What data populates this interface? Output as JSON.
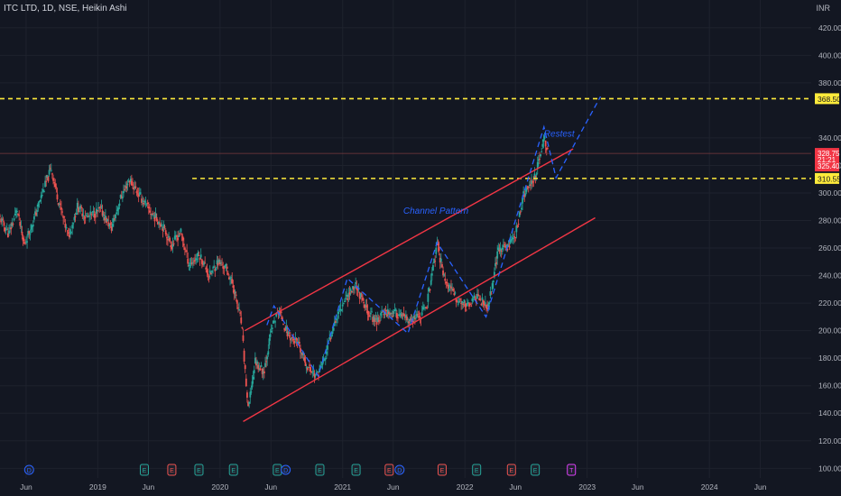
{
  "header": {
    "title": "ITC LTD, 1D, NSE, Heikin Ashi",
    "currency": "INR"
  },
  "colors": {
    "background": "#131722",
    "grid": "#1e222d",
    "up": "#26a69a",
    "down": "#ef5350",
    "channel": "#f23645",
    "projection": "#2962ff",
    "level": "#ffeb3b",
    "axis_text": "#b2b5be"
  },
  "chart_data": {
    "type": "candlestick",
    "title": "ITC LTD, 1D, NSE, Heikin Ashi",
    "y_axis": {
      "ylim": [
        93,
        431
      ],
      "ticks": [
        "420.00",
        "400.00",
        "380.00",
        "340.00",
        "320.00",
        "300.00",
        "280.00",
        "260.00",
        "240.00",
        "220.00",
        "200.00",
        "180.00",
        "160.00",
        "140.00",
        "120.00",
        "100.00"
      ]
    },
    "x_axis": {
      "xlim": [
        "2018-03-15",
        "2024-10-31"
      ],
      "ticks": [
        {
          "date": "2018-06-01",
          "label": "Jun"
        },
        {
          "date": "2019-01-01",
          "label": "2019"
        },
        {
          "date": "2019-06-01",
          "label": "Jun"
        },
        {
          "date": "2020-01-01",
          "label": "2020"
        },
        {
          "date": "2020-06-01",
          "label": "Jun"
        },
        {
          "date": "2021-01-01",
          "label": "2021"
        },
        {
          "date": "2021-06-01",
          "label": "Jun"
        },
        {
          "date": "2022-01-01",
          "label": "2022"
        },
        {
          "date": "2022-06-01",
          "label": "Jun"
        },
        {
          "date": "2023-01-01",
          "label": "2023"
        },
        {
          "date": "2023-06-01",
          "label": "Jun"
        },
        {
          "date": "2024-01-01",
          "label": "2024"
        },
        {
          "date": "2024-06-01",
          "label": "Jun"
        }
      ]
    },
    "price_path": [
      [
        "2018-03-15",
        282
      ],
      [
        "2018-04-10",
        270
      ],
      [
        "2018-05-05",
        288
      ],
      [
        "2018-05-25",
        262
      ],
      [
        "2018-06-20",
        278
      ],
      [
        "2018-07-20",
        300
      ],
      [
        "2018-08-15",
        318
      ],
      [
        "2018-09-05",
        295
      ],
      [
        "2018-10-05",
        268
      ],
      [
        "2018-11-01",
        290
      ],
      [
        "2018-12-01",
        282
      ],
      [
        "2019-01-10",
        288
      ],
      [
        "2019-02-10",
        274
      ],
      [
        "2019-03-10",
        296
      ],
      [
        "2019-04-05",
        310
      ],
      [
        "2019-05-01",
        300
      ],
      [
        "2019-06-10",
        285
      ],
      [
        "2019-07-10",
        278
      ],
      [
        "2019-08-10",
        262
      ],
      [
        "2019-09-05",
        272
      ],
      [
        "2019-10-01",
        248
      ],
      [
        "2019-11-01",
        255
      ],
      [
        "2019-12-01",
        240
      ],
      [
        "2019-12-25",
        250
      ],
      [
        "2020-01-20",
        245
      ],
      [
        "2020-02-10",
        232
      ],
      [
        "2020-03-05",
        205
      ],
      [
        "2020-03-25",
        142
      ],
      [
        "2020-04-15",
        178
      ],
      [
        "2020-05-10",
        170
      ],
      [
        "2020-06-05",
        203
      ],
      [
        "2020-06-25",
        215
      ],
      [
        "2020-07-20",
        198
      ],
      [
        "2020-08-20",
        190
      ],
      [
        "2020-09-15",
        175
      ],
      [
        "2020-10-15",
        167
      ],
      [
        "2020-11-10",
        180
      ],
      [
        "2020-12-05",
        205
      ],
      [
        "2021-01-05",
        222
      ],
      [
        "2021-02-10",
        234
      ],
      [
        "2021-03-05",
        218
      ],
      [
        "2021-04-10",
        207
      ],
      [
        "2021-05-10",
        214
      ],
      [
        "2021-06-15",
        212
      ],
      [
        "2021-07-20",
        206
      ],
      [
        "2021-08-20",
        210
      ],
      [
        "2021-09-10",
        220
      ],
      [
        "2021-10-10",
        262
      ],
      [
        "2021-11-05",
        235
      ],
      [
        "2021-12-10",
        222
      ],
      [
        "2022-01-10",
        218
      ],
      [
        "2022-02-10",
        225
      ],
      [
        "2022-03-10",
        215
      ],
      [
        "2022-04-10",
        258
      ],
      [
        "2022-05-10",
        262
      ],
      [
        "2022-06-01",
        270
      ],
      [
        "2022-06-25",
        298
      ],
      [
        "2022-07-15",
        305
      ],
      [
        "2022-08-05",
        318
      ],
      [
        "2022-08-25",
        340
      ],
      [
        "2022-09-05",
        332
      ]
    ],
    "series": [
      {
        "name": "Channel Pattern",
        "type": "trendline",
        "points": [
          [
            "2020-03-15",
            200
          ],
          [
            "2022-11-20",
            332
          ]
        ]
      },
      {
        "type": "trendline",
        "points": [
          [
            "2020-03-10",
            134
          ],
          [
            "2023-01-25",
            282
          ]
        ]
      },
      {
        "type": "projection",
        "points": [
          [
            "2020-05-20",
            204
          ],
          [
            "2020-06-10",
            218
          ],
          [
            "2020-10-20",
            167
          ],
          [
            "2021-01-15",
            238
          ],
          [
            "2021-07-15",
            198
          ],
          [
            "2021-10-10",
            264
          ],
          [
            "2022-03-05",
            210
          ],
          [
            "2022-08-25",
            348
          ],
          [
            "2022-09-30",
            311
          ],
          [
            "2023-02-10",
            370
          ]
        ]
      }
    ],
    "horizontal_levels": [
      {
        "value": 368.5,
        "label": "368.50",
        "from": "2018-03-15",
        "style": "dashed"
      },
      {
        "value": 310.55,
        "label": "310.55",
        "from": "2019-10-10",
        "style": "dashed"
      }
    ],
    "price_labels": [
      {
        "value": 328.75,
        "label": "328.75"
      },
      {
        "value": 324.2,
        "label": "21:21"
      },
      {
        "value": 319.6,
        "label": "325.40"
      }
    ],
    "annotations": [
      {
        "text": "Channel Pattern",
        "date": "2021-07-01",
        "value": 285
      },
      {
        "text": "Restest",
        "date": "2022-08-25",
        "value": 341
      }
    ],
    "events": [
      {
        "date": "2018-06-10",
        "label": "D",
        "kind": "dividend"
      },
      {
        "date": "2019-05-20",
        "label": "E",
        "kind": "earnings-up"
      },
      {
        "date": "2019-08-10",
        "label": "E",
        "kind": "earnings-down"
      },
      {
        "date": "2019-10-30",
        "label": "E",
        "kind": "earnings-up"
      },
      {
        "date": "2020-02-10",
        "label": "E",
        "kind": "earnings-up"
      },
      {
        "date": "2020-06-20",
        "label": "E",
        "kind": "earnings-up"
      },
      {
        "date": "2020-07-15",
        "label": "D",
        "kind": "dividend"
      },
      {
        "date": "2020-10-25",
        "label": "E",
        "kind": "earnings-up"
      },
      {
        "date": "2021-02-10",
        "label": "E",
        "kind": "earnings-up"
      },
      {
        "date": "2021-05-20",
        "label": "E",
        "kind": "earnings-down"
      },
      {
        "date": "2021-06-20",
        "label": "D",
        "kind": "dividend"
      },
      {
        "date": "2021-10-25",
        "label": "E",
        "kind": "earnings-down"
      },
      {
        "date": "2022-02-05",
        "label": "E",
        "kind": "earnings-up"
      },
      {
        "date": "2022-05-20",
        "label": "E",
        "kind": "earnings-down"
      },
      {
        "date": "2022-07-30",
        "label": "E",
        "kind": "earnings-up"
      },
      {
        "date": "2022-11-15",
        "label": "T",
        "kind": "split"
      }
    ],
    "grid": true,
    "legend": "none"
  }
}
